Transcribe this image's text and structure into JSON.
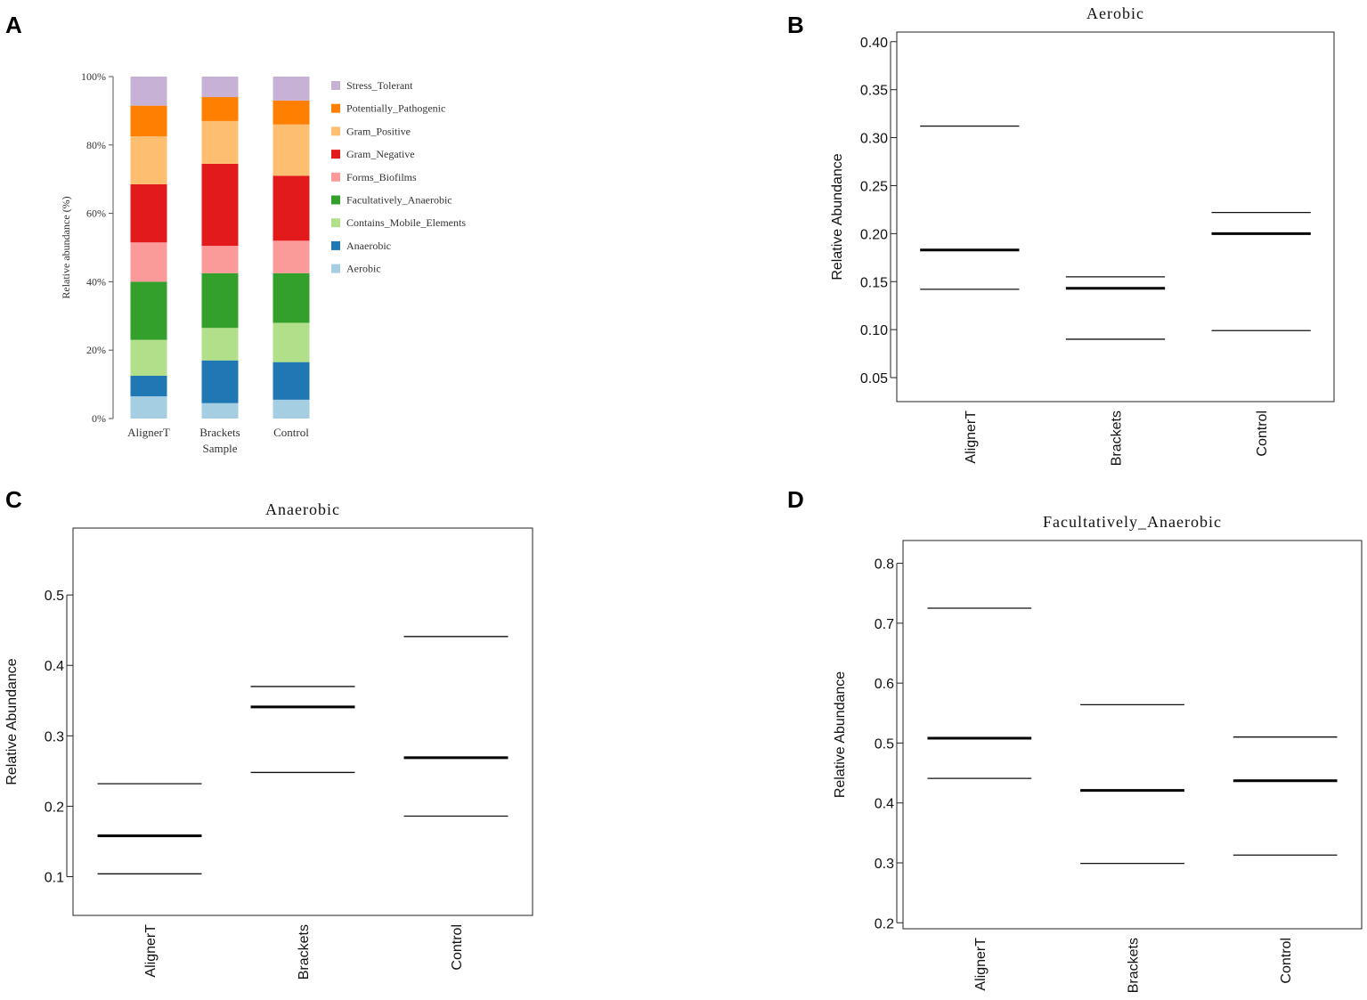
{
  "figure": {
    "panel_letters": [
      "A",
      "B",
      "C",
      "D"
    ]
  },
  "colors": {
    "Stress_Tolerant": "#c7b2d6",
    "Potentially_Pathogenic": "#ff7f00",
    "Gram_Positive": "#fdbf6f",
    "Gram_Negative": "#e31a1c",
    "Forms_Biofilms": "#fb9a99",
    "Facultatively_Anaerobic": "#33a02c",
    "Contains_Mobile_Elements": "#b2df8a",
    "Anaerobic": "#1f78b4",
    "Aerobic": "#a6cee3"
  },
  "chart_data": [
    {
      "panel": "A",
      "type": "bar",
      "stacked": true,
      "title": "",
      "xlabel": "Sample",
      "ylabel": "Relative abundance (%)",
      "ylim": [
        0,
        100
      ],
      "yticks": [
        "0%",
        "20%",
        "40%",
        "60%",
        "80%",
        "100%"
      ],
      "categories": [
        "AlignerT",
        "Brackets",
        "Control"
      ],
      "legend_order": [
        "Stress_Tolerant",
        "Potentially_Pathogenic",
        "Gram_Positive",
        "Gram_Negative",
        "Forms_Biofilms",
        "Facultatively_Anaerobic",
        "Contains_Mobile_Elements",
        "Anaerobic",
        "Aerobic"
      ],
      "legend_position": "right",
      "series": [
        {
          "name": "Aerobic",
          "values": [
            6.5,
            4.5,
            5.5
          ]
        },
        {
          "name": "Anaerobic",
          "values": [
            6.0,
            12.5,
            11.0
          ]
        },
        {
          "name": "Contains_Mobile_Elements",
          "values": [
            10.5,
            9.5,
            11.5
          ]
        },
        {
          "name": "Facultatively_Anaerobic",
          "values": [
            17.0,
            16.0,
            14.5
          ]
        },
        {
          "name": "Forms_Biofilms",
          "values": [
            11.5,
            8.0,
            9.5
          ]
        },
        {
          "name": "Gram_Negative",
          "values": [
            17.0,
            24.0,
            19.0
          ]
        },
        {
          "name": "Gram_Positive",
          "values": [
            14.0,
            12.5,
            15.0
          ]
        },
        {
          "name": "Potentially_Pathogenic",
          "values": [
            9.0,
            7.0,
            7.0
          ]
        },
        {
          "name": "Stress_Tolerant",
          "values": [
            8.5,
            6.0,
            7.0
          ]
        }
      ]
    },
    {
      "panel": "B",
      "type": "box",
      "title": "Aerobic",
      "xlabel": "",
      "ylabel": "Relative Abundance",
      "ylim": [
        0.025,
        0.41
      ],
      "yticks": [
        "0.05",
        "0.10",
        "0.15",
        "0.20",
        "0.25",
        "0.30",
        "0.35",
        "0.40"
      ],
      "categories": [
        "AlignerT",
        "Brackets",
        "Control"
      ],
      "upper": [
        0.312,
        0.155,
        0.222
      ],
      "median": [
        0.183,
        0.143,
        0.2
      ],
      "lower": [
        0.142,
        0.09,
        0.099
      ]
    },
    {
      "panel": "C",
      "type": "box",
      "title": "Anaerobic",
      "xlabel": "",
      "ylabel": "Relative Abundance",
      "ylim": [
        0.045,
        0.595
      ],
      "yticks": [
        "0.1",
        "0.2",
        "0.3",
        "0.4",
        "0.5"
      ],
      "categories": [
        "AlignerT",
        "Brackets",
        "Control"
      ],
      "upper": [
        0.232,
        0.37,
        0.441
      ],
      "median": [
        0.158,
        0.341,
        0.269
      ],
      "lower": [
        0.104,
        0.248,
        0.186
      ]
    },
    {
      "panel": "D",
      "type": "box",
      "title": "Facultatively_Anaerobic",
      "xlabel": "",
      "ylabel": "Relative Abundance",
      "ylim": [
        0.19,
        0.838
      ],
      "yticks": [
        "0.2",
        "0.3",
        "0.4",
        "0.5",
        "0.6",
        "0.7",
        "0.8"
      ],
      "categories": [
        "AlignerT",
        "Brackets",
        "Control"
      ],
      "upper": [
        0.725,
        0.564,
        0.51
      ],
      "median": [
        0.508,
        0.421,
        0.437
      ],
      "lower": [
        0.441,
        0.299,
        0.313
      ]
    }
  ]
}
